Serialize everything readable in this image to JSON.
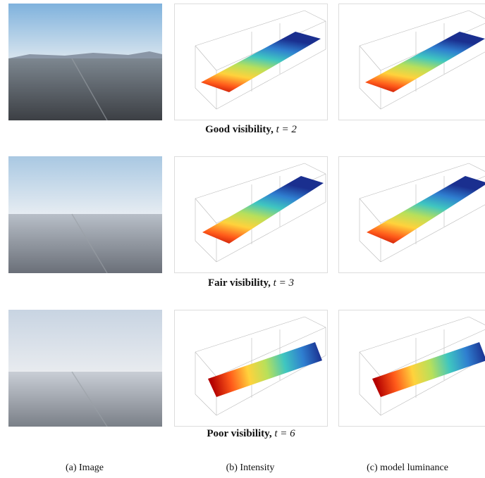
{
  "rows": [
    {
      "caption": {
        "label": "Good visibility,",
        "param": "t = 2"
      }
    },
    {
      "caption": {
        "label": "Fair visibility,",
        "param": "t = 3"
      }
    },
    {
      "caption": {
        "label": "Poor visibility,",
        "param": "t = 6"
      }
    }
  ],
  "columns": [
    "(a) Image",
    "(b) Intensity",
    "(c) model luminance"
  ]
}
